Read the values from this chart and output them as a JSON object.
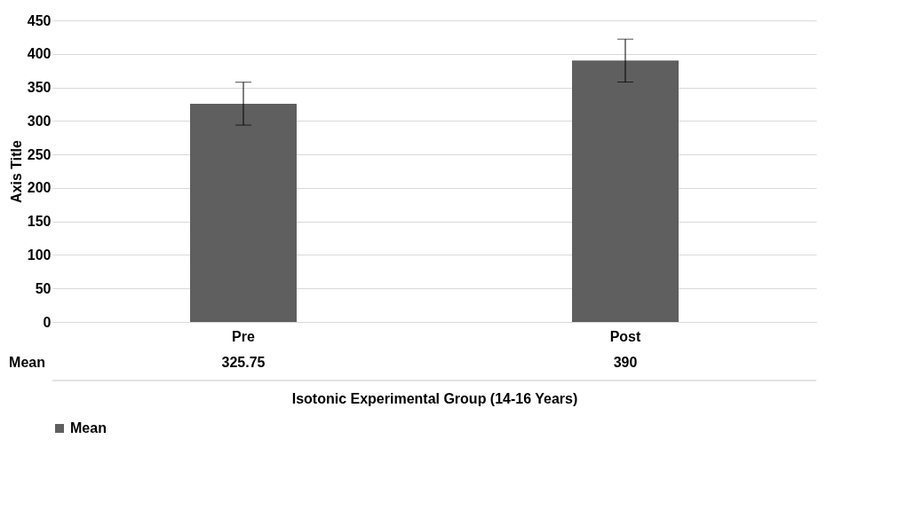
{
  "chart_data": {
    "type": "bar",
    "xlabel": "Isotonic Experimental Group (14-16 Years)",
    "ylabel": "Axis Title",
    "categories": [
      "Pre",
      "Post"
    ],
    "series": [
      {
        "name": "Mean",
        "color": "#5f5f5f",
        "values": [
          325.75,
          390
        ],
        "errors": [
          32,
          32
        ]
      }
    ],
    "ylim": [
      0,
      450
    ],
    "yticks": [
      0,
      50,
      100,
      150,
      200,
      250,
      300,
      350,
      400,
      450
    ],
    "grid": "y",
    "legend": "bottom",
    "data_labels": true
  }
}
